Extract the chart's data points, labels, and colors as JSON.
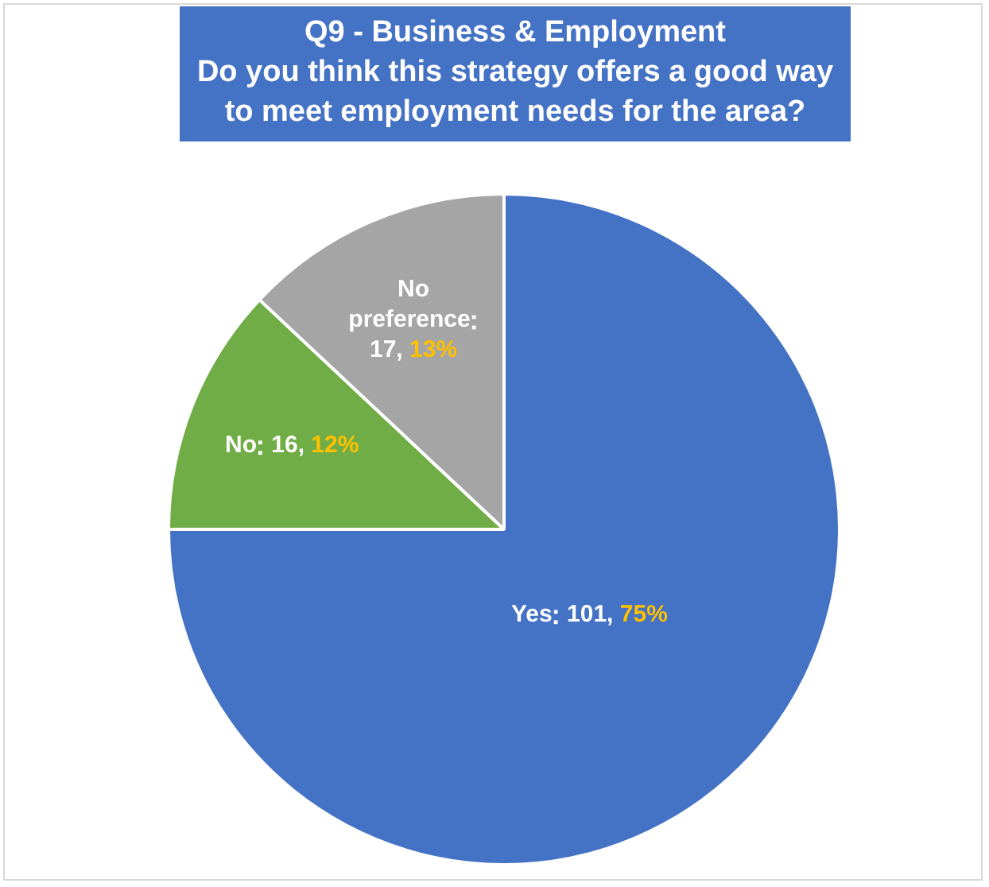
{
  "chart_data": {
    "type": "pie",
    "title": "Q9 - Business & Employment",
    "subtitle": "Do you think this strategy offers a good way to meet employment needs for the area?",
    "categories": [
      "Yes",
      "No",
      "No preference"
    ],
    "values": [
      75,
      12,
      13
    ],
    "colors": [
      "#4472c4",
      "#70ad47",
      "#a5a5a5"
    ],
    "value_labels": [
      "101, 75%",
      "16, 12%",
      "17, 13%"
    ],
    "legend": false
  }
}
